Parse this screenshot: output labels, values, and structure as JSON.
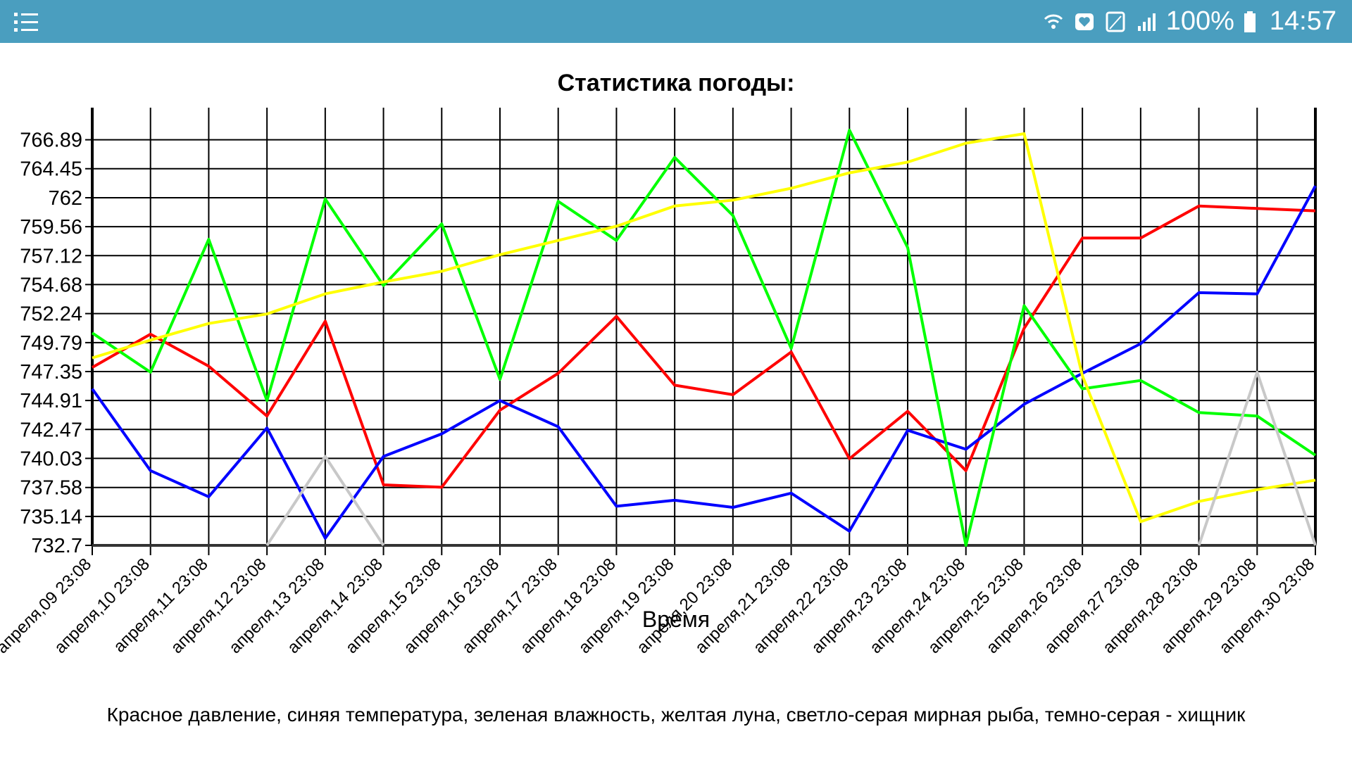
{
  "status_bar": {
    "menu_icon": "menu-list-icon",
    "icons": [
      "wifi-calling-icon",
      "heart-notification-icon",
      "no-sim-icon",
      "signal-icon"
    ],
    "battery_text": "100%",
    "battery_icon": "battery-full-icon",
    "time": "14:57",
    "background_color": "#4a9ebf"
  },
  "chart_data": {
    "type": "line",
    "title": "Статистика погоды:",
    "xlabel": "Время",
    "ylabel": "",
    "ylim": [
      732.7,
      769.0
    ],
    "y_ticks": [
      "732.7",
      "735.14",
      "737.58",
      "740.03",
      "742.47",
      "744.91",
      "747.35",
      "749.79",
      "752.24",
      "754.68",
      "757.12",
      "759.56",
      "762",
      "764.45",
      "766.89"
    ],
    "y_tick_values": [
      732.7,
      735.14,
      737.58,
      740.03,
      742.47,
      744.91,
      747.35,
      749.79,
      752.24,
      754.68,
      757.12,
      759.56,
      762,
      764.45,
      766.89
    ],
    "categories": [
      "апреля,09 23:08",
      "апреля,10 23:08",
      "апреля,11 23:08",
      "апреля,12 23:08",
      "апреля,13 23:08",
      "апреля,14 23:08",
      "апреля,15 23:08",
      "апреля,16 23:08",
      "апреля,17 23:08",
      "апреля,18 23:08",
      "апреля,19 23:08",
      "апреля,20 23:08",
      "апреля,21 23:08",
      "апреля,22 23:08",
      "апреля,23 23:08",
      "апреля,24 23:08",
      "апреля,25 23:08",
      "апреля,26 23:08",
      "апреля,27 23:08",
      "апреля,28 23:08",
      "апреля,29 23:08",
      "апреля,30 23:08"
    ],
    "grid": true,
    "legend": "none",
    "series": [
      {
        "color": "#ff0000",
        "values": [
          747.7,
          750.5,
          747.8,
          743.6,
          751.6,
          737.8,
          737.6,
          744.1,
          747.2,
          752.0,
          746.2,
          745.4,
          749.0,
          740.0,
          744.0,
          739.0,
          751.0,
          758.6,
          758.6,
          761.3,
          761.1,
          760.9
        ]
      },
      {
        "color": "#0000ff",
        "values": [
          745.9,
          739.0,
          736.8,
          742.6,
          733.3,
          740.2,
          742.1,
          744.9,
          742.7,
          736.0,
          736.5,
          735.9,
          737.1,
          733.9,
          742.4,
          740.8,
          744.6,
          747.2,
          749.7,
          754.0,
          753.9,
          763.0
        ]
      },
      {
        "color": "#00ff00",
        "values": [
          750.6,
          747.3,
          758.5,
          744.9,
          761.9,
          754.6,
          759.8,
          746.7,
          761.7,
          758.4,
          765.4,
          760.5,
          749.3,
          767.7,
          757.8,
          732.7,
          752.9,
          745.9,
          746.6,
          743.9,
          743.6,
          740.3
        ]
      },
      {
        "color": "#ffff00",
        "values": [
          748.5,
          750.0,
          751.4,
          752.2,
          753.9,
          754.9,
          755.8,
          757.2,
          758.4,
          759.6,
          761.3,
          761.8,
          762.8,
          764.1,
          765.0,
          766.6,
          767.4,
          747.0,
          734.7,
          736.4,
          737.4,
          738.2
        ]
      },
      {
        "color": "#c8c8c8",
        "values": [
          null,
          null,
          null,
          732.7,
          740.2,
          732.7,
          null,
          null,
          null,
          null,
          null,
          null,
          null,
          null,
          null,
          null,
          null,
          null,
          null,
          732.7,
          747.3,
          732.7
        ]
      }
    ]
  },
  "caption": "Красное давление, синяя температура, зеленая влажность, желтая луна, светло-серая мирная рыба, темно-серая - хищник"
}
